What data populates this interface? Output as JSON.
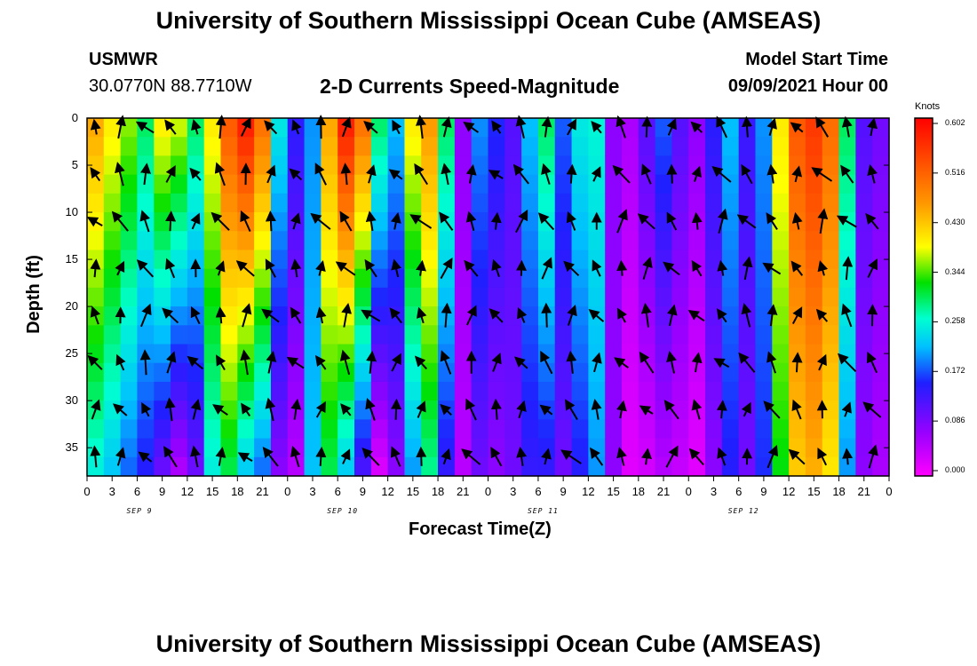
{
  "page": {
    "title_top": "University of Southern Mississippi Ocean Cube (AMSEAS)",
    "title_bottom": "University of Southern Mississippi Ocean Cube (AMSEAS)",
    "station": "USMWR",
    "coords": "30.0770N  88.7710W",
    "subtitle": "2-D Currents Speed-Magnitude",
    "model_start_label": "Model Start Time",
    "model_start_value": "09/09/2021 Hour 00"
  },
  "chart_data": {
    "type": "heatmap",
    "title": "2-D Currents Speed-Magnitude",
    "xlabel": "Forecast Time(Z)",
    "ylabel": "Depth (ft)",
    "x_tick_labels": [
      "0",
      "3",
      "6",
      "9",
      "12",
      "15",
      "18",
      "21",
      "0",
      "3",
      "6",
      "9",
      "12",
      "15",
      "18",
      "21",
      "0",
      "3",
      "6",
      "9",
      "12",
      "15",
      "18",
      "21",
      "0",
      "3",
      "6",
      "9",
      "12",
      "15",
      "18",
      "21",
      "0"
    ],
    "x_range_hours": [
      0,
      96
    ],
    "date_labels": [
      {
        "text": "SEP 9",
        "hour": 6
      },
      {
        "text": "SEP 10",
        "hour": 30
      },
      {
        "text": "SEP 11",
        "hour": 54
      },
      {
        "text": "SEP 12",
        "hour": 78
      }
    ],
    "y_tick_labels": [
      "0",
      "5",
      "10",
      "15",
      "20",
      "25",
      "30",
      "35"
    ],
    "y_range_ft": [
      0,
      38
    ],
    "colorbar": {
      "unit": "Knots",
      "ticks": [
        "0.602",
        "0.516",
        "0.430",
        "0.344",
        "0.258",
        "0.172",
        "0.086",
        "0.000"
      ],
      "min": 0.0,
      "max": 0.602
    },
    "column_speed_knots_estimated": [
      {
        "hour": 0,
        "top": 0.45,
        "bottom": 0.25
      },
      {
        "hour": 2,
        "top": 0.4,
        "bottom": 0.22
      },
      {
        "hour": 4,
        "top": 0.36,
        "bottom": 0.18
      },
      {
        "hour": 6,
        "top": 0.3,
        "bottom": 0.15
      },
      {
        "hour": 8,
        "top": 0.4,
        "bottom": 0.1
      },
      {
        "hour": 10,
        "top": 0.38,
        "bottom": 0.05
      },
      {
        "hour": 12,
        "top": 0.3,
        "bottom": 0.1
      },
      {
        "hour": 14,
        "top": 0.4,
        "bottom": 0.25
      },
      {
        "hour": 16,
        "top": 0.52,
        "bottom": 0.3
      },
      {
        "hour": 18,
        "top": 0.58,
        "bottom": 0.22
      },
      {
        "hour": 20,
        "top": 0.5,
        "bottom": 0.18
      },
      {
        "hour": 22,
        "top": 0.25,
        "bottom": 0.08
      },
      {
        "hour": 24,
        "top": 0.15,
        "bottom": 0.05
      },
      {
        "hour": 26,
        "top": 0.2,
        "bottom": 0.22
      },
      {
        "hour": 28,
        "top": 0.45,
        "bottom": 0.3
      },
      {
        "hour": 30,
        "top": 0.58,
        "bottom": 0.22
      },
      {
        "hour": 32,
        "top": 0.5,
        "bottom": 0.12
      },
      {
        "hour": 34,
        "top": 0.3,
        "bottom": 0.02
      },
      {
        "hour": 36,
        "top": 0.22,
        "bottom": 0.08
      },
      {
        "hour": 38,
        "top": 0.4,
        "bottom": 0.2
      },
      {
        "hour": 40,
        "top": 0.46,
        "bottom": 0.28
      },
      {
        "hour": 42,
        "top": 0.3,
        "bottom": 0.14
      },
      {
        "hour": 44,
        "top": 0.08,
        "bottom": 0.05
      },
      {
        "hour": 46,
        "top": 0.2,
        "bottom": 0.1
      },
      {
        "hour": 48,
        "top": 0.16,
        "bottom": 0.08
      },
      {
        "hour": 50,
        "top": 0.12,
        "bottom": 0.1
      },
      {
        "hour": 52,
        "top": 0.22,
        "bottom": 0.14
      },
      {
        "hour": 54,
        "top": 0.3,
        "bottom": 0.14
      },
      {
        "hour": 56,
        "top": 0.18,
        "bottom": 0.1
      },
      {
        "hour": 58,
        "top": 0.25,
        "bottom": 0.15
      },
      {
        "hour": 60,
        "top": 0.26,
        "bottom": 0.2
      },
      {
        "hour": 62,
        "top": 0.08,
        "bottom": 0.08
      },
      {
        "hour": 64,
        "top": 0.06,
        "bottom": 0.02
      },
      {
        "hour": 66,
        "top": 0.12,
        "bottom": 0.03
      },
      {
        "hour": 68,
        "top": 0.18,
        "bottom": 0.05
      },
      {
        "hour": 70,
        "top": 0.12,
        "bottom": 0.04
      },
      {
        "hour": 72,
        "top": 0.08,
        "bottom": 0.02
      },
      {
        "hour": 74,
        "top": 0.15,
        "bottom": 0.08
      },
      {
        "hour": 76,
        "top": 0.22,
        "bottom": 0.15
      },
      {
        "hour": 78,
        "top": 0.14,
        "bottom": 0.1
      },
      {
        "hour": 80,
        "top": 0.2,
        "bottom": 0.16
      },
      {
        "hour": 82,
        "top": 0.4,
        "bottom": 0.32
      },
      {
        "hour": 84,
        "top": 0.52,
        "bottom": 0.42
      },
      {
        "hour": 86,
        "top": 0.55,
        "bottom": 0.44
      },
      {
        "hour": 88,
        "top": 0.5,
        "bottom": 0.4
      },
      {
        "hour": 90,
        "top": 0.3,
        "bottom": 0.2
      },
      {
        "hour": 92,
        "top": 0.12,
        "bottom": 0.08
      },
      {
        "hour": 94,
        "top": 0.1,
        "bottom": 0.06
      },
      {
        "hour": 96,
        "top": 0.22,
        "bottom": 0.14
      }
    ]
  }
}
